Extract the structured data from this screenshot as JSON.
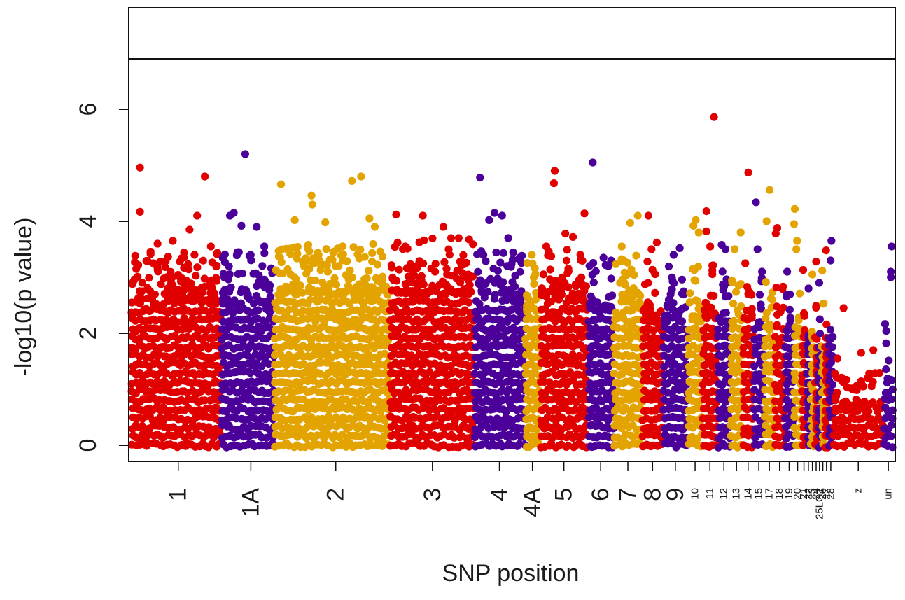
{
  "chart_data": {
    "type": "scatter",
    "title": "",
    "xlabel": "SNP position",
    "ylabel": "-log10(p value)",
    "ylim": [
      0,
      7.8
    ],
    "yticks": [
      0,
      2,
      4,
      6
    ],
    "threshold_line": 6.9,
    "palette": [
      "#e00000",
      "#4b0099",
      "#e3a300"
    ],
    "chromosomes": [
      {
        "label": "1",
        "start": 0.0,
        "end": 0.1186,
        "tick": 0.0622,
        "color": "#e00000",
        "dense_top": 2.6,
        "tall_top": 3.5,
        "peaks": [
          [
            0.012,
            4.96
          ],
          [
            0.012,
            4.17
          ],
          [
            0.097,
            4.8
          ],
          [
            0.087,
            4.1
          ],
          [
            0.077,
            3.85
          ],
          [
            0.055,
            3.65
          ],
          [
            0.105,
            3.55
          ],
          [
            0.035,
            3.6
          ]
        ]
      },
      {
        "label": "1A",
        "start": 0.1186,
        "end": 0.1883,
        "tick": 0.1574,
        "color": "#4b0099",
        "dense_top": 2.5,
        "tall_top": 3.5,
        "peaks": [
          [
            0.15,
            5.2
          ],
          [
            0.135,
            4.15
          ],
          [
            0.13,
            4.1
          ],
          [
            0.145,
            3.92
          ],
          [
            0.165,
            3.9
          ],
          [
            0.175,
            3.55
          ]
        ]
      },
      {
        "label": "2",
        "start": 0.1883,
        "end": 0.3396,
        "tick": 0.2688,
        "color": "#e3a300",
        "dense_top": 2.7,
        "tall_top": 3.6,
        "peaks": [
          [
            0.197,
            4.66
          ],
          [
            0.302,
            4.8
          ],
          [
            0.29,
            4.72
          ],
          [
            0.237,
            4.46
          ],
          [
            0.238,
            4.3
          ],
          [
            0.215,
            4.02
          ],
          [
            0.255,
            3.98
          ],
          [
            0.313,
            4.05
          ],
          [
            0.32,
            3.9
          ]
        ]
      },
      {
        "label": "3",
        "start": 0.3396,
        "end": 0.4507,
        "tick": 0.3956,
        "color": "#e00000",
        "dense_top": 2.7,
        "tall_top": 3.7,
        "peaks": [
          [
            0.348,
            4.12
          ],
          [
            0.383,
            4.1
          ],
          [
            0.41,
            3.9
          ],
          [
            0.43,
            3.7
          ],
          [
            0.35,
            3.62
          ],
          [
            0.36,
            3.55
          ]
        ]
      },
      {
        "label": "4",
        "start": 0.4507,
        "end": 0.5171,
        "tick": 0.4835,
        "color": "#4b0099",
        "dense_top": 2.6,
        "tall_top": 3.5,
        "peaks": [
          [
            0.458,
            4.78
          ],
          [
            0.477,
            4.15
          ],
          [
            0.487,
            4.1
          ],
          [
            0.47,
            4.02
          ],
          [
            0.495,
            3.7
          ]
        ]
      },
      {
        "label": "4A",
        "start": 0.5171,
        "end": 0.5369,
        "tick": 0.5268,
        "color": "#e3a300",
        "dense_top": 2.4,
        "tall_top": 3.3,
        "peaks": [
          [
            0.526,
            3.4
          ]
        ]
      },
      {
        "label": "5",
        "start": 0.5369,
        "end": 0.5996,
        "tick": 0.5681,
        "color": "#e00000",
        "dense_top": 2.6,
        "tall_top": 3.5,
        "peaks": [
          [
            0.556,
            4.9
          ],
          [
            0.555,
            4.68
          ],
          [
            0.595,
            4.14
          ],
          [
            0.57,
            3.78
          ],
          [
            0.58,
            3.72
          ],
          [
            0.545,
            3.55
          ]
        ]
      },
      {
        "label": "6",
        "start": 0.5996,
        "end": 0.6334,
        "tick": 0.6163,
        "color": "#4b0099",
        "dense_top": 2.4,
        "tall_top": 3.3,
        "peaks": [
          [
            0.606,
            5.05
          ],
          [
            0.62,
            3.35
          ],
          [
            0.63,
            3.3
          ]
        ]
      },
      {
        "label": "7",
        "start": 0.6334,
        "end": 0.6707,
        "tick": 0.652,
        "color": "#e3a300",
        "dense_top": 2.5,
        "tall_top": 3.4,
        "peaks": [
          [
            0.655,
            3.97
          ],
          [
            0.665,
            4.1
          ],
          [
            0.644,
            3.55
          ]
        ]
      },
      {
        "label": "8",
        "start": 0.6707,
        "end": 0.6982,
        "tick": 0.6844,
        "color": "#e00000",
        "dense_top": 2.3,
        "tall_top": 3.3,
        "peaks": [
          [
            0.679,
            4.1
          ],
          [
            0.69,
            3.62
          ],
          [
            0.683,
            3.5
          ]
        ]
      },
      {
        "label": "9",
        "start": 0.6982,
        "end": 0.7308,
        "tick": 0.7143,
        "color": "#4b0099",
        "dense_top": 2.3,
        "tall_top": 3.2,
        "peaks": [
          [
            0.72,
            3.52
          ],
          [
            0.712,
            3.4
          ]
        ]
      },
      {
        "label": "10",
        "start": 0.7308,
        "end": 0.7496,
        "tick": 0.7402,
        "color": "#e3a300",
        "dense_top": 2.3,
        "tall_top": 3.3,
        "peaks": [
          [
            0.741,
            4.02
          ],
          [
            0.738,
            3.92
          ],
          [
            0.745,
            3.8
          ]
        ]
      },
      {
        "label": "11",
        "start": 0.7496,
        "end": 0.7696,
        "tick": 0.7596,
        "color": "#e00000",
        "dense_top": 2.3,
        "tall_top": 3.3,
        "peaks": [
          [
            0.765,
            5.86
          ],
          [
            0.755,
            4.18
          ],
          [
            0.755,
            3.82
          ],
          [
            0.76,
            3.55
          ]
        ]
      },
      {
        "label": "12",
        "start": 0.7696,
        "end": 0.7864,
        "tick": 0.778,
        "color": "#4b0099",
        "dense_top": 2.2,
        "tall_top": 3.2,
        "peaks": [
          [
            0.775,
            3.58
          ],
          [
            0.78,
            3.5
          ]
        ]
      },
      {
        "label": "13",
        "start": 0.7864,
        "end": 0.8026,
        "tick": 0.7945,
        "color": "#e3a300",
        "dense_top": 2.2,
        "tall_top": 3.1,
        "peaks": [
          [
            0.8,
            3.8
          ],
          [
            0.792,
            3.5
          ]
        ]
      },
      {
        "label": "14",
        "start": 0.8026,
        "end": 0.8168,
        "tick": 0.8097,
        "color": "#e00000",
        "dense_top": 2.2,
        "tall_top": 3.1,
        "peaks": [
          [
            0.81,
            4.87
          ],
          [
            0.806,
            3.25
          ]
        ]
      },
      {
        "label": "15",
        "start": 0.8168,
        "end": 0.8309,
        "tick": 0.8238,
        "color": "#4b0099",
        "dense_top": 2.1,
        "tall_top": 3.0,
        "peaks": [
          [
            0.82,
            4.34
          ],
          [
            0.822,
            3.5
          ],
          [
            0.828,
            3.1
          ]
        ]
      },
      {
        "label": "17",
        "start": 0.8309,
        "end": 0.8444,
        "tick": 0.8376,
        "color": "#e3a300",
        "dense_top": 2.1,
        "tall_top": 3.0,
        "peaks": [
          [
            0.838,
            4.56
          ],
          [
            0.834,
            4.0
          ]
        ]
      },
      {
        "label": "18",
        "start": 0.8444,
        "end": 0.8576,
        "tick": 0.851,
        "color": "#e00000",
        "dense_top": 2.1,
        "tall_top": 3.0,
        "peaks": [
          [
            0.848,
            3.88
          ],
          [
            0.846,
            3.78
          ]
        ]
      },
      {
        "label": "19",
        "start": 0.8576,
        "end": 0.8697,
        "tick": 0.8636,
        "color": "#4b0099",
        "dense_top": 2.0,
        "tall_top": 2.9,
        "peaks": [
          [
            0.861,
            3.1
          ]
        ]
      },
      {
        "label": "20",
        "start": 0.8697,
        "end": 0.8797,
        "tick": 0.8747,
        "color": "#e3a300",
        "dense_top": 2.0,
        "tall_top": 2.9,
        "peaks": [
          [
            0.871,
            4.22
          ],
          [
            0.87,
            3.95
          ],
          [
            0.874,
            3.65
          ],
          [
            0.873,
            3.5
          ]
        ]
      },
      {
        "label": "21",
        "start": 0.8797,
        "end": 0.8862,
        "tick": 0.883,
        "color": "#e00000",
        "dense_top": 2.0,
        "tall_top": 2.8,
        "peaks": [
          [
            0.882,
            3.13
          ]
        ]
      },
      {
        "label": "22",
        "start": 0.8862,
        "end": 0.8915,
        "tick": 0.8888,
        "color": "#4b0099",
        "dense_top": 1.9,
        "tall_top": 2.7,
        "peaks": [
          [
            0.889,
            2.8
          ]
        ]
      },
      {
        "label": "23",
        "start": 0.8915,
        "end": 0.8968,
        "tick": 0.8941,
        "color": "#e3a300",
        "dense_top": 1.9,
        "tall_top": 2.7,
        "peaks": [
          [
            0.894,
            3.05
          ]
        ]
      },
      {
        "label": "24",
        "start": 0.8968,
        "end": 0.9013,
        "tick": 0.899,
        "color": "#e00000",
        "dense_top": 1.9,
        "tall_top": 2.7,
        "peaks": [
          [
            0.899,
            3.28
          ]
        ]
      },
      {
        "label": "25LG1",
        "start": 0.9013,
        "end": 0.9055,
        "tick": 0.9034,
        "color": "#4b0099",
        "dense_top": 1.9,
        "tall_top": 2.6,
        "peaks": [
          [
            0.903,
            2.9
          ]
        ]
      },
      {
        "label": "26",
        "start": 0.9055,
        "end": 0.9102,
        "tick": 0.9078,
        "color": "#e3a300",
        "dense_top": 1.9,
        "tall_top": 2.6,
        "peaks": [
          [
            0.907,
            3.12
          ]
        ]
      },
      {
        "label": "27",
        "start": 0.9102,
        "end": 0.915,
        "tick": 0.9126,
        "color": "#e00000",
        "dense_top": 1.9,
        "tall_top": 2.7,
        "peaks": [
          [
            0.912,
            3.48
          ]
        ]
      },
      {
        "label": "28",
        "start": 0.915,
        "end": 0.9215,
        "tick": 0.9182,
        "color": "#4b0099",
        "dense_top": 1.9,
        "tall_top": 2.7,
        "peaks": [
          [
            0.919,
            3.65
          ],
          [
            0.918,
            3.3
          ]
        ]
      },
      {
        "label": "z",
        "start": 0.9215,
        "end": 0.9874,
        "tick": 0.9543,
        "color": "#e00000",
        "dense_top": 0.6,
        "tall_top": 1.3,
        "peaks": [
          [
            0.935,
            2.45
          ],
          [
            0.958,
            1.65
          ],
          [
            0.927,
            1.55
          ],
          [
            0.974,
            1.7
          ]
        ]
      },
      {
        "label": "un",
        "start": 0.9874,
        "end": 1.0,
        "tick": 0.9937,
        "color": "#4b0099",
        "dense_top": 1.1,
        "tall_top": 2.6,
        "peaks": [
          [
            0.998,
            3.55
          ],
          [
            0.997,
            3.1
          ],
          [
            0.997,
            3.0
          ]
        ]
      }
    ],
    "tick_label_font": {
      "large": 34,
      "small": 15
    }
  }
}
